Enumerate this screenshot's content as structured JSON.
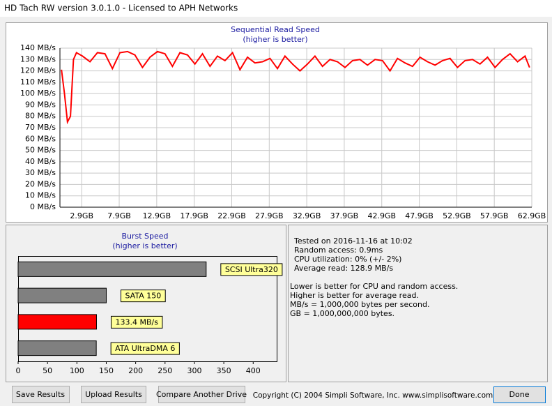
{
  "window": {
    "title": "HD Tach RW version 3.0.1.0 - Licensed to APH Networks"
  },
  "read_chart": {
    "type": "line",
    "title": "Sequential Read Speed",
    "subtitle": "(higher is better)",
    "color": "#ff0000",
    "x": [
      0.2,
      0.6,
      1.0,
      1.4,
      1.8,
      2.2,
      3,
      4,
      5,
      6,
      7,
      8,
      9,
      10,
      11,
      12,
      13,
      14,
      15,
      16,
      17,
      18,
      19,
      20,
      21,
      22,
      23,
      24,
      25,
      26,
      27,
      28,
      29,
      30,
      31,
      32,
      33,
      34,
      35,
      36,
      37,
      38,
      39,
      40,
      41,
      42,
      43,
      44,
      45,
      46,
      47,
      48,
      49,
      50,
      51,
      52,
      53,
      54,
      55,
      56,
      57,
      58,
      59,
      60,
      61,
      62,
      62.6
    ],
    "values": [
      121,
      100,
      75,
      80,
      130,
      136,
      133,
      128,
      136,
      135,
      122,
      136,
      137,
      134,
      123,
      132,
      137,
      135,
      124,
      136,
      134,
      126,
      135,
      124,
      133,
      129,
      136,
      121,
      132,
      127,
      128,
      131,
      122,
      133,
      126,
      120,
      126,
      133,
      124,
      130,
      128,
      123,
      129,
      130,
      125,
      130,
      129,
      120,
      131,
      127,
      124,
      132,
      128,
      125,
      129,
      131,
      123,
      129,
      130,
      126,
      132,
      123,
      130,
      135,
      128,
      133,
      123
    ],
    "xlim": [
      0,
      62.9
    ],
    "ylim": [
      0,
      140
    ],
    "xticks": [
      {
        "value": 2.9,
        "label": "2.9GB"
      },
      {
        "value": 7.9,
        "label": "7.9GB"
      },
      {
        "value": 12.9,
        "label": "12.9GB"
      },
      {
        "value": 17.9,
        "label": "17.9GB"
      },
      {
        "value": 22.9,
        "label": "22.9GB"
      },
      {
        "value": 27.9,
        "label": "27.9GB"
      },
      {
        "value": 32.9,
        "label": "32.9GB"
      },
      {
        "value": 37.9,
        "label": "37.9GB"
      },
      {
        "value": 42.9,
        "label": "42.9GB"
      },
      {
        "value": 47.9,
        "label": "47.9GB"
      },
      {
        "value": 52.9,
        "label": "52.9GB"
      },
      {
        "value": 57.9,
        "label": "57.9GB"
      },
      {
        "value": 62.9,
        "label": "62.9GB"
      }
    ],
    "yticks": [
      {
        "value": 0,
        "label": "0 MB/s"
      },
      {
        "value": 10,
        "label": "10 MB/s"
      },
      {
        "value": 20,
        "label": "20 MB/s"
      },
      {
        "value": 30,
        "label": "30 MB/s"
      },
      {
        "value": 40,
        "label": "40 MB/s"
      },
      {
        "value": 50,
        "label": "50 MB/s"
      },
      {
        "value": 60,
        "label": "60 MB/s"
      },
      {
        "value": 70,
        "label": "70 MB/s"
      },
      {
        "value": 80,
        "label": "80 MB/s"
      },
      {
        "value": 90,
        "label": "90 MB/s"
      },
      {
        "value": 100,
        "label": "100 MB/s"
      },
      {
        "value": 110,
        "label": "110 MB/s"
      },
      {
        "value": 120,
        "label": "120 MB/s"
      },
      {
        "value": 130,
        "label": "130 MB/s"
      },
      {
        "value": 140,
        "label": "140 MB/s"
      }
    ],
    "grid": true
  },
  "burst_chart": {
    "type": "bar",
    "orientation": "horizontal",
    "title": "Burst Speed",
    "subtitle": "(higher is better)",
    "categories": [
      "SCSI Ultra320",
      "SATA 150",
      "133.4 MB/s",
      "ATA UltraDMA 6"
    ],
    "values": [
      320,
      150,
      133.4,
      133
    ],
    "colors": [
      "#808080",
      "#808080",
      "#ff0000",
      "#808080"
    ],
    "xlim": [
      0,
      440
    ],
    "xticks": [
      0,
      50,
      100,
      150,
      200,
      250,
      300,
      350,
      400
    ]
  },
  "info": {
    "lines": [
      "Tested on 2016-11-16 at 10:02",
      "Random access: 0.9ms",
      "CPU utilization: 0% (+/- 2%)",
      "Average read: 128.9 MB/s"
    ],
    "notes": [
      "Lower is better for CPU and random access.",
      "Higher is better for average read.",
      "MB/s = 1,000,000 bytes per second.",
      "GB = 1,000,000,000 bytes."
    ]
  },
  "buttons": [
    "Save Results",
    "Upload Results",
    "Compare Another Drive"
  ],
  "copyright": "Copyright (C) 2004 Simpli Software, Inc. www.simplisoftware.com",
  "done": "Done"
}
